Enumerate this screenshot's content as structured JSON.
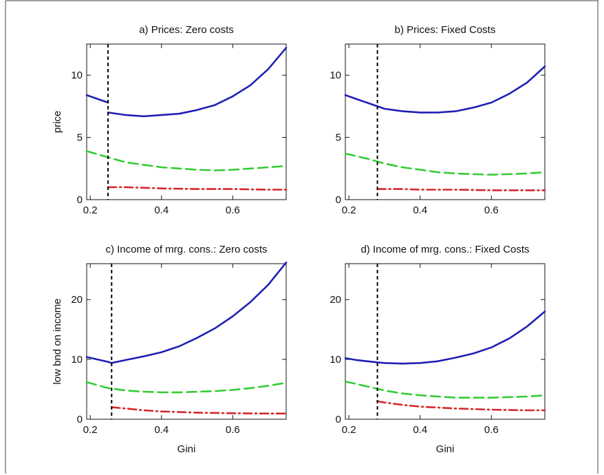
{
  "figure": {
    "colors": {
      "series_1": "#1f1fb4",
      "series_2": "#33cc33",
      "series_3": "#d62728",
      "threshold_line": "#000000"
    }
  },
  "chart_data": [
    {
      "type": "line",
      "title": "a) Prices: Zero costs",
      "xlabel": "",
      "ylabel": "price",
      "xlim": [
        0.19,
        0.75
      ],
      "ylim": [
        0,
        12.5
      ],
      "xticks": [
        0.2,
        0.4,
        0.6
      ],
      "xtick_labels": [
        "0.2",
        "0.4",
        "0.6"
      ],
      "yticks": [
        0,
        5,
        10
      ],
      "ytick_labels": [
        "0",
        "5",
        "10"
      ],
      "vline_x": 0.25,
      "series": [
        {
          "style": "solid",
          "color": "#1f1fb4",
          "segments": [
            {
              "x": [
                0.19,
                0.22,
                0.25
              ],
              "y": [
                8.4,
                8.1,
                7.8
              ]
            },
            {
              "x": [
                0.25,
                0.3,
                0.35,
                0.4,
                0.45,
                0.5,
                0.55,
                0.6,
                0.65,
                0.7,
                0.75
              ],
              "y": [
                7.0,
                6.8,
                6.7,
                6.8,
                6.9,
                7.2,
                7.6,
                8.3,
                9.2,
                10.5,
                12.2
              ]
            }
          ]
        },
        {
          "style": "dashed",
          "color": "#33cc33",
          "segments": [
            {
              "x": [
                0.19,
                0.25,
                0.3,
                0.35,
                0.4,
                0.45,
                0.5,
                0.55,
                0.6,
                0.65,
                0.7,
                0.75
              ],
              "y": [
                3.9,
                3.4,
                3.0,
                2.8,
                2.6,
                2.5,
                2.4,
                2.35,
                2.4,
                2.5,
                2.6,
                2.7
              ]
            }
          ]
        },
        {
          "style": "dashdot",
          "color": "#d62728",
          "segments": [
            {
              "x": [
                0.25,
                0.3,
                0.4,
                0.5,
                0.6,
                0.7,
                0.75
              ],
              "y": [
                1.0,
                1.0,
                0.9,
                0.85,
                0.85,
                0.8,
                0.8
              ]
            }
          ]
        }
      ]
    },
    {
      "type": "line",
      "title": "b) Prices: Fixed Costs",
      "xlabel": "",
      "ylabel": "",
      "xlim": [
        0.19,
        0.75
      ],
      "ylim": [
        0,
        12.5
      ],
      "xticks": [
        0.2,
        0.4,
        0.6
      ],
      "xtick_labels": [
        "0.2",
        "0.4",
        "0.6"
      ],
      "yticks": [
        0,
        5,
        10
      ],
      "ytick_labels": [
        "0",
        "5",
        "10"
      ],
      "vline_x": 0.28,
      "series": [
        {
          "style": "solid",
          "color": "#1f1fb4",
          "segments": [
            {
              "x": [
                0.19,
                0.22,
                0.25,
                0.28,
                0.3,
                0.35,
                0.4,
                0.45,
                0.5,
                0.55,
                0.6,
                0.65,
                0.7,
                0.75
              ],
              "y": [
                8.4,
                8.1,
                7.8,
                7.5,
                7.3,
                7.1,
                7.0,
                7.0,
                7.1,
                7.4,
                7.8,
                8.5,
                9.4,
                10.7
              ]
            }
          ]
        },
        {
          "style": "dashed",
          "color": "#33cc33",
          "segments": [
            {
              "x": [
                0.19,
                0.25,
                0.3,
                0.35,
                0.4,
                0.45,
                0.5,
                0.55,
                0.6,
                0.65,
                0.7,
                0.75
              ],
              "y": [
                3.7,
                3.3,
                2.9,
                2.6,
                2.4,
                2.2,
                2.1,
                2.05,
                2.0,
                2.05,
                2.1,
                2.2
              ]
            }
          ]
        },
        {
          "style": "dashdot",
          "color": "#d62728",
          "segments": [
            {
              "x": [
                0.28,
                0.35,
                0.4,
                0.5,
                0.6,
                0.7,
                0.75
              ],
              "y": [
                0.85,
                0.85,
                0.8,
                0.8,
                0.75,
                0.75,
                0.75
              ]
            }
          ]
        }
      ]
    },
    {
      "type": "line",
      "title": "c) Income of mrg. cons.: Zero costs",
      "xlabel": "Gini",
      "ylabel": "low bnd on income",
      "xlim": [
        0.19,
        0.75
      ],
      "ylim": [
        0,
        26
      ],
      "xticks": [
        0.2,
        0.4,
        0.6
      ],
      "xtick_labels": [
        "0.2",
        "0.4",
        "0.6"
      ],
      "yticks": [
        0,
        10,
        20
      ],
      "ytick_labels": [
        "0",
        "10",
        "20"
      ],
      "vline_x": 0.26,
      "series": [
        {
          "style": "solid",
          "color": "#1f1fb4",
          "segments": [
            {
              "x": [
                0.19,
                0.22,
                0.25,
                0.26,
                0.3,
                0.35,
                0.4,
                0.45,
                0.5,
                0.55,
                0.6,
                0.65,
                0.7,
                0.75
              ],
              "y": [
                10.4,
                10.0,
                9.6,
                9.4,
                9.9,
                10.5,
                11.2,
                12.2,
                13.6,
                15.2,
                17.2,
                19.6,
                22.5,
                26.2
              ]
            }
          ]
        },
        {
          "style": "dashed",
          "color": "#33cc33",
          "segments": [
            {
              "x": [
                0.19,
                0.25,
                0.3,
                0.35,
                0.4,
                0.45,
                0.5,
                0.55,
                0.6,
                0.65,
                0.7,
                0.75
              ],
              "y": [
                6.2,
                5.2,
                4.8,
                4.6,
                4.5,
                4.5,
                4.6,
                4.7,
                4.9,
                5.2,
                5.6,
                6.1
              ]
            }
          ]
        },
        {
          "style": "dashdot",
          "color": "#d62728",
          "segments": [
            {
              "x": [
                0.26,
                0.3,
                0.35,
                0.4,
                0.5,
                0.6,
                0.7,
                0.75
              ],
              "y": [
                2.0,
                1.8,
                1.5,
                1.3,
                1.1,
                1.0,
                0.95,
                0.95
              ]
            }
          ]
        }
      ]
    },
    {
      "type": "line",
      "title": "d) Income of mrg. cons.: Fixed Costs",
      "xlabel": "Gini",
      "ylabel": "",
      "xlim": [
        0.19,
        0.75
      ],
      "ylim": [
        0,
        26
      ],
      "xticks": [
        0.2,
        0.4,
        0.6
      ],
      "xtick_labels": [
        "0.2",
        "0.4",
        "0.6"
      ],
      "yticks": [
        0,
        10,
        20
      ],
      "ytick_labels": [
        "0",
        "10",
        "20"
      ],
      "vline_x": 0.28,
      "series": [
        {
          "style": "solid",
          "color": "#1f1fb4",
          "segments": [
            {
              "x": [
                0.19,
                0.22,
                0.25,
                0.28,
                0.3,
                0.35,
                0.4,
                0.45,
                0.5,
                0.55,
                0.6,
                0.65,
                0.7,
                0.75
              ],
              "y": [
                10.2,
                9.9,
                9.7,
                9.5,
                9.4,
                9.3,
                9.4,
                9.7,
                10.3,
                11.0,
                12.0,
                13.5,
                15.5,
                18.0
              ]
            }
          ]
        },
        {
          "style": "dashed",
          "color": "#33cc33",
          "segments": [
            {
              "x": [
                0.19,
                0.25,
                0.3,
                0.35,
                0.4,
                0.45,
                0.5,
                0.55,
                0.6,
                0.65,
                0.7,
                0.75
              ],
              "y": [
                6.3,
                5.5,
                4.8,
                4.3,
                4.0,
                3.8,
                3.6,
                3.6,
                3.6,
                3.7,
                3.8,
                4.0
              ]
            }
          ]
        },
        {
          "style": "dashdot",
          "color": "#d62728",
          "segments": [
            {
              "x": [
                0.28,
                0.3,
                0.35,
                0.4,
                0.5,
                0.6,
                0.7,
                0.75
              ],
              "y": [
                3.0,
                2.8,
                2.4,
                2.1,
                1.8,
                1.6,
                1.5,
                1.5
              ]
            }
          ]
        }
      ]
    }
  ]
}
